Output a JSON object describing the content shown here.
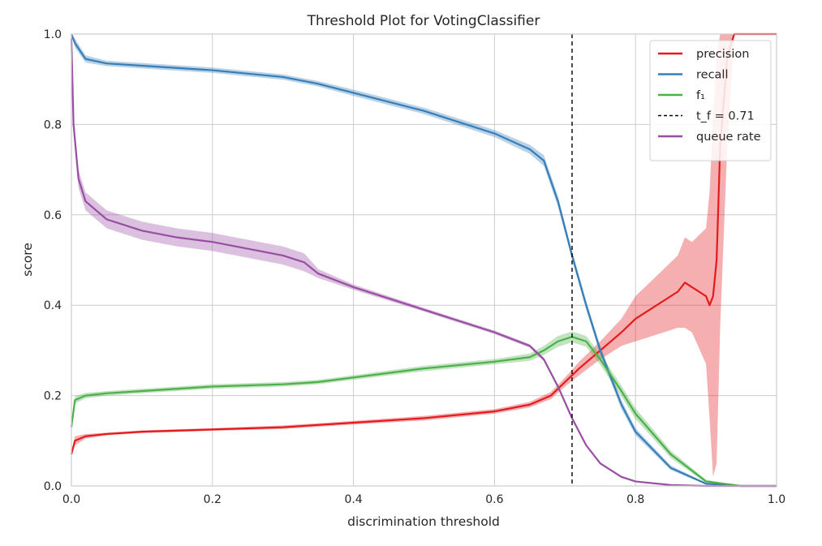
{
  "chart_data": {
    "type": "line",
    "title": "Threshold Plot for VotingClassifier",
    "xlabel": "discrimination threshold",
    "ylabel": "score",
    "xlim": [
      0.0,
      1.0
    ],
    "ylim": [
      0.0,
      1.0
    ],
    "xticks": [
      "0.0",
      "0.2",
      "0.4",
      "0.6",
      "0.8",
      "1.0"
    ],
    "yticks": [
      "0.0",
      "0.2",
      "0.4",
      "0.6",
      "0.8",
      "1.0"
    ],
    "grid": true,
    "legend_position": "top-right",
    "threshold": {
      "label": "t_f = 0.71",
      "value": 0.71,
      "color": "#000000"
    },
    "series": [
      {
        "name": "precision",
        "color": "#e41a1c",
        "x": [
          0.0,
          0.005,
          0.02,
          0.05,
          0.1,
          0.2,
          0.3,
          0.35,
          0.4,
          0.5,
          0.6,
          0.65,
          0.68,
          0.7,
          0.72,
          0.75,
          0.78,
          0.8,
          0.82,
          0.84,
          0.86,
          0.87,
          0.88,
          0.9,
          0.905,
          0.91,
          0.915,
          0.92,
          0.93,
          0.94,
          1.0
        ],
        "y": [
          0.07,
          0.1,
          0.11,
          0.115,
          0.12,
          0.125,
          0.13,
          0.135,
          0.14,
          0.15,
          0.165,
          0.18,
          0.2,
          0.23,
          0.26,
          0.3,
          0.34,
          0.37,
          0.39,
          0.41,
          0.43,
          0.45,
          0.44,
          0.42,
          0.4,
          0.42,
          0.5,
          0.75,
          0.95,
          1.0,
          1.0
        ],
        "band": [
          0.0,
          0.01,
          0.005,
          0.003,
          0.003,
          0.003,
          0.004,
          0.004,
          0.004,
          0.005,
          0.005,
          0.006,
          0.008,
          0.01,
          0.015,
          0.02,
          0.03,
          0.05,
          0.06,
          0.07,
          0.08,
          0.1,
          0.1,
          0.15,
          0.25,
          0.4,
          0.45,
          0.4,
          0.2,
          0.0,
          0.0
        ]
      },
      {
        "name": "recall",
        "color": "#377eb8",
        "x": [
          0.0,
          0.005,
          0.02,
          0.05,
          0.1,
          0.2,
          0.3,
          0.35,
          0.4,
          0.5,
          0.6,
          0.65,
          0.67,
          0.69,
          0.71,
          0.73,
          0.75,
          0.78,
          0.8,
          0.85,
          0.9,
          0.95,
          1.0
        ],
        "y": [
          1.0,
          0.98,
          0.945,
          0.935,
          0.93,
          0.92,
          0.905,
          0.89,
          0.87,
          0.83,
          0.78,
          0.745,
          0.72,
          0.63,
          0.51,
          0.4,
          0.3,
          0.18,
          0.12,
          0.04,
          0.005,
          0.0,
          0.0
        ],
        "band": [
          0.0,
          0.01,
          0.008,
          0.006,
          0.006,
          0.006,
          0.006,
          0.006,
          0.007,
          0.007,
          0.008,
          0.01,
          0.012,
          0.012,
          0.01,
          0.01,
          0.01,
          0.01,
          0.008,
          0.005,
          0.002,
          0.0,
          0.0
        ]
      },
      {
        "name": "f₁",
        "color": "#4daf4a",
        "x": [
          0.0,
          0.005,
          0.02,
          0.05,
          0.1,
          0.2,
          0.3,
          0.35,
          0.4,
          0.5,
          0.6,
          0.65,
          0.67,
          0.69,
          0.71,
          0.73,
          0.75,
          0.78,
          0.8,
          0.85,
          0.9,
          0.95,
          1.0
        ],
        "y": [
          0.13,
          0.19,
          0.2,
          0.205,
          0.21,
          0.22,
          0.225,
          0.23,
          0.24,
          0.26,
          0.275,
          0.285,
          0.3,
          0.32,
          0.33,
          0.32,
          0.28,
          0.21,
          0.16,
          0.07,
          0.01,
          0.0,
          0.0
        ],
        "band": [
          0.0,
          0.008,
          0.006,
          0.005,
          0.005,
          0.005,
          0.005,
          0.005,
          0.005,
          0.006,
          0.006,
          0.008,
          0.01,
          0.012,
          0.012,
          0.012,
          0.012,
          0.012,
          0.012,
          0.008,
          0.004,
          0.0,
          0.0
        ]
      },
      {
        "name": "queue rate",
        "color": "#984ea3",
        "x": [
          0.0,
          0.003,
          0.01,
          0.02,
          0.05,
          0.1,
          0.15,
          0.2,
          0.25,
          0.3,
          0.33,
          0.35,
          0.4,
          0.5,
          0.6,
          0.65,
          0.67,
          0.69,
          0.71,
          0.73,
          0.75,
          0.78,
          0.8,
          0.85,
          0.9,
          1.0
        ],
        "y": [
          0.99,
          0.8,
          0.68,
          0.63,
          0.59,
          0.565,
          0.55,
          0.54,
          0.525,
          0.51,
          0.495,
          0.47,
          0.44,
          0.39,
          0.34,
          0.31,
          0.28,
          0.22,
          0.15,
          0.09,
          0.05,
          0.02,
          0.01,
          0.002,
          0.0,
          0.0
        ],
        "band": [
          0.0,
          0.02,
          0.02,
          0.02,
          0.02,
          0.02,
          0.02,
          0.02,
          0.02,
          0.02,
          0.02,
          0.01,
          0.006,
          0.004,
          0.004,
          0.004,
          0.004,
          0.004,
          0.003,
          0.002,
          0.002,
          0.001,
          0.0,
          0.0,
          0.0,
          0.0
        ]
      }
    ]
  }
}
